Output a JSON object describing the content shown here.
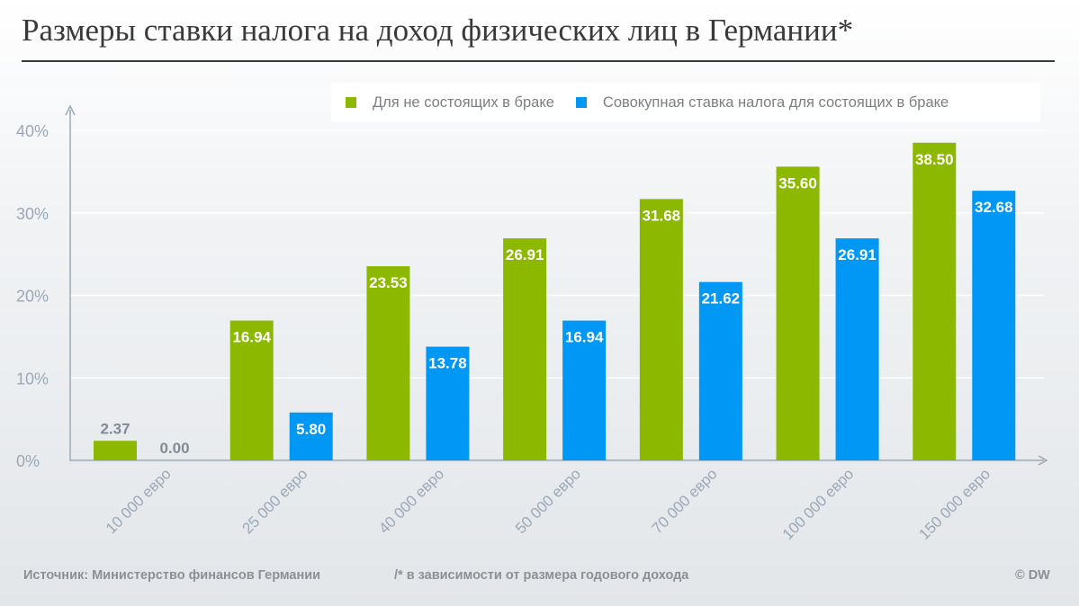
{
  "title": "Размеры ставки налога на доход физических лиц в Германии*",
  "colors": {
    "single": "#8cb900",
    "married": "#0097f5",
    "axis": "#9aa9b8",
    "grid": "#ffffff",
    "label_dark": "#7f8c96",
    "bar_label": "#ffffff"
  },
  "chart_data": {
    "type": "bar",
    "title": "Размеры ставки налога на доход физических лиц в Германии*",
    "xlabel": "",
    "ylabel": "",
    "categories": [
      "10 000 евро",
      "25 000 евро",
      "40 000 евро",
      "50 000 евро",
      "70 000 евро",
      "100 000 евро",
      "150 000 евро"
    ],
    "series": [
      {
        "name": "Для не состоящих в браке",
        "color": "#8cb900",
        "values": [
          2.37,
          16.94,
          23.53,
          26.91,
          31.68,
          35.6,
          38.5
        ],
        "labels": [
          "2.37",
          "16.94",
          "23.53",
          "26.91",
          "31.68",
          "35.60",
          "38.50"
        ]
      },
      {
        "name": "Совокупная ставка налога для состоящих в браке",
        "color": "#0097f5",
        "values": [
          0.0,
          5.8,
          13.78,
          16.94,
          21.62,
          26.91,
          32.68
        ],
        "labels": [
          "0.00",
          "5.80",
          "13.78",
          "16.94",
          "21.62",
          "26.91",
          "32.68"
        ]
      }
    ],
    "ylim": [
      0,
      40
    ],
    "yticks": [
      0,
      10,
      20,
      30,
      40
    ],
    "ytick_labels": [
      "0%",
      "10%",
      "20%",
      "30%",
      "40%"
    ],
    "grid": true,
    "legend": "top-right"
  },
  "footer": {
    "source": "Источник: Министерство финансов Германии",
    "note": "/* в зависимости от размера годового дохода",
    "copyright": "© DW"
  }
}
